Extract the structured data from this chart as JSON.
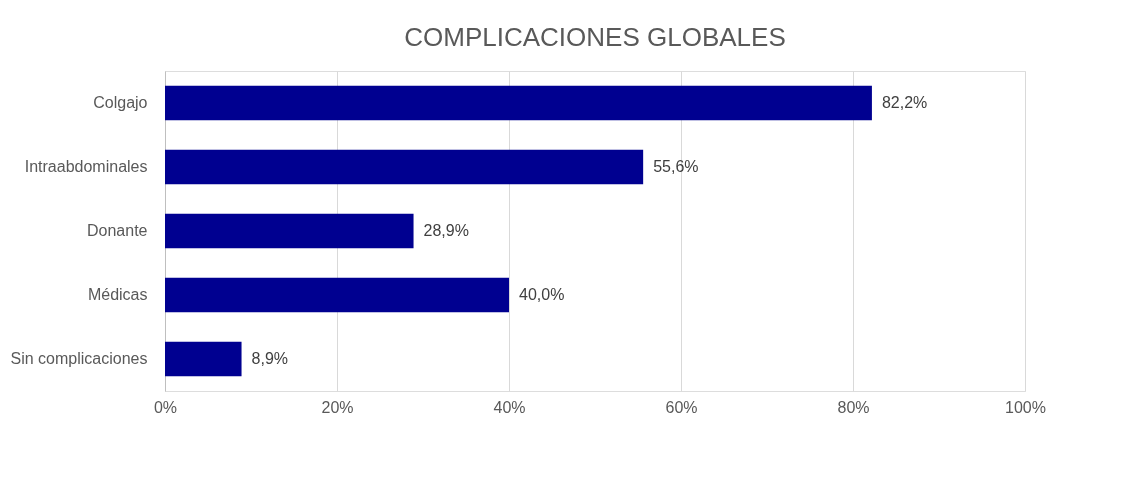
{
  "chart_data": {
    "type": "bar",
    "orientation": "horizontal",
    "title": "COMPLICACIONES GLOBALES",
    "categories": [
      "Colgajo",
      "Intraabdominales",
      "Donante",
      "Médicas",
      "Sin complicaciones"
    ],
    "values": [
      82.2,
      55.6,
      28.9,
      40.0,
      8.9
    ],
    "value_labels": [
      "82,2%",
      "55,6%",
      "28,9%",
      "40,0%",
      "8,9%"
    ],
    "color": "#000090",
    "xlim": [
      0,
      100
    ],
    "xticks": [
      {
        "value": 0,
        "label": "0%"
      },
      {
        "value": 20,
        "label": "20%"
      },
      {
        "value": 40,
        "label": "40%"
      },
      {
        "value": 60,
        "label": "60%"
      },
      {
        "value": 80,
        "label": "80%"
      },
      {
        "value": 100,
        "label": "100%"
      }
    ],
    "grid": "x"
  }
}
